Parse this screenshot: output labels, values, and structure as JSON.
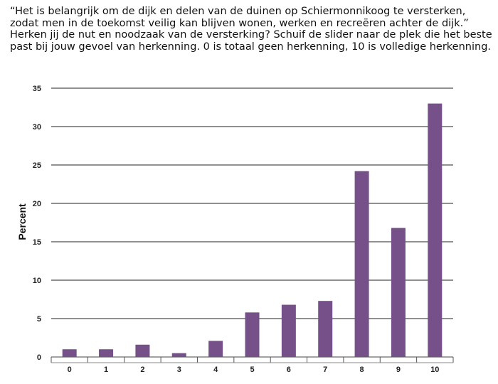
{
  "question": {
    "lines": [
      "“Het is belangrijk om de dijk en delen van de duinen op Schiermonnikoog te versterken,",
      "zodat men in de toekomst veilig kan blijven wonen, werken en recreëren achter de dijk.”",
      "Herken jij de nut en noodzaak van de versterking? Schuif de slider naar de plek die het beste",
      "past bij jouw gevoel van herkenning. 0 is totaal geen herkenning, 10 is volledige herkenning."
    ]
  },
  "chart_data": {
    "type": "bar",
    "categories": [
      "0",
      "1",
      "2",
      "3",
      "4",
      "5",
      "6",
      "7",
      "8",
      "9",
      "10"
    ],
    "values": [
      1.0,
      1.0,
      1.6,
      0.5,
      2.1,
      5.8,
      6.8,
      7.3,
      24.2,
      16.8,
      33.0
    ],
    "ylabel": "Percent",
    "xlabel": "",
    "ylim": [
      0,
      35
    ],
    "yticks": [
      0,
      5,
      10,
      15,
      20,
      25,
      30,
      35
    ],
    "grid": true,
    "bar_color": "#765088"
  }
}
